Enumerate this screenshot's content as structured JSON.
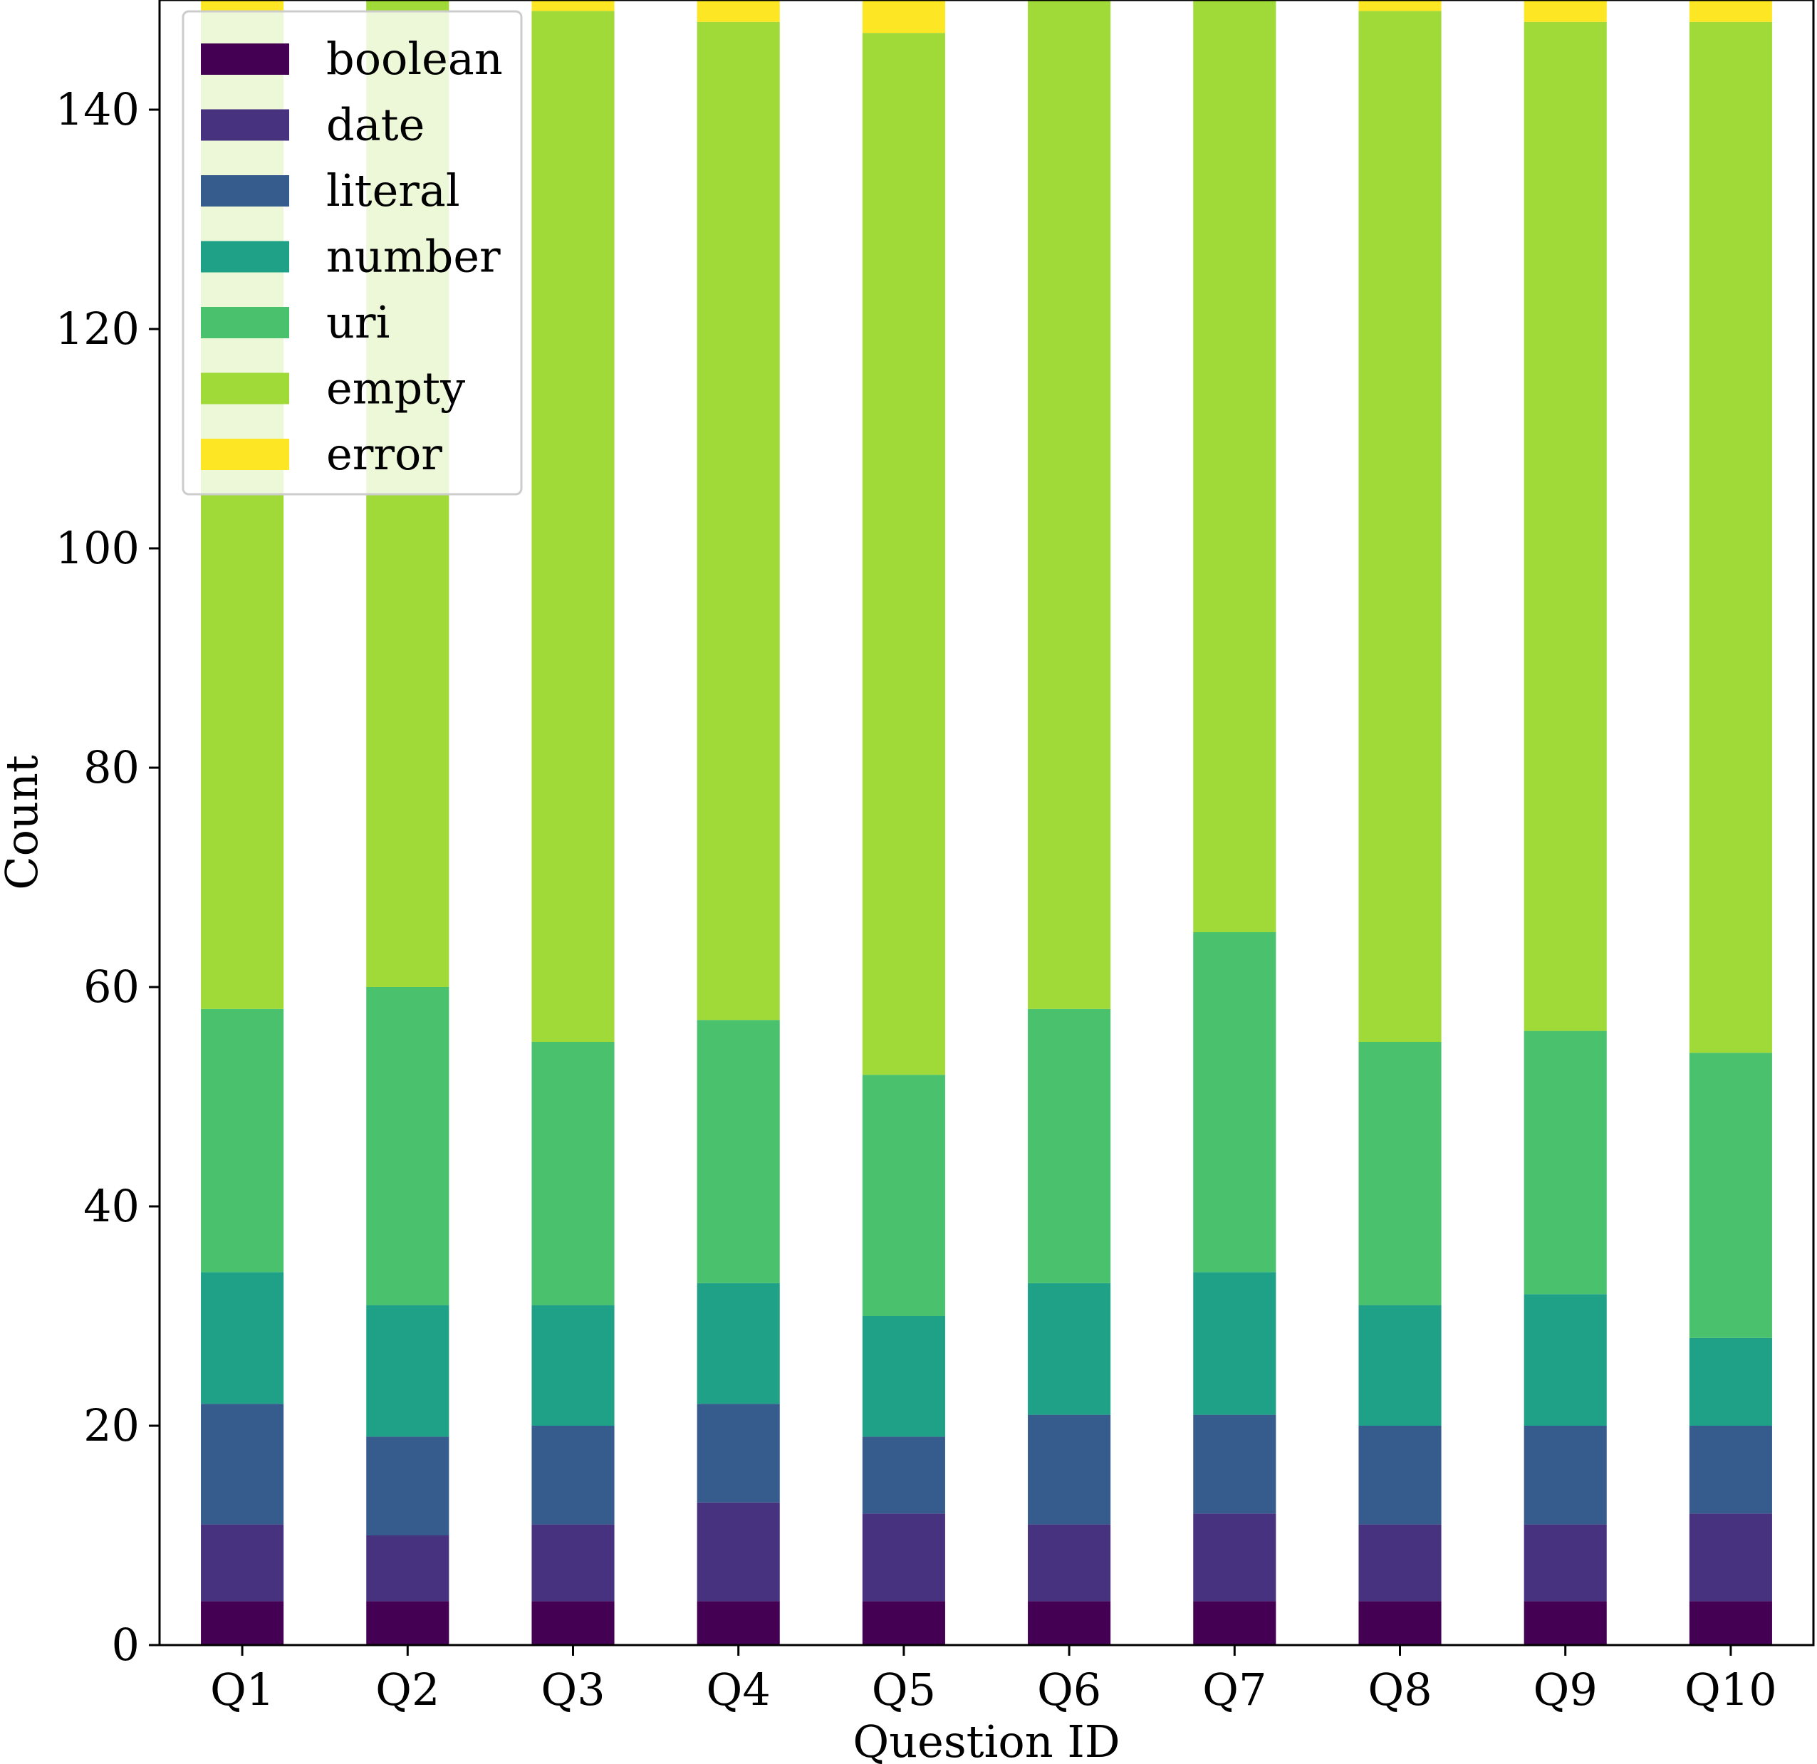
{
  "chart_data": {
    "type": "bar",
    "stacked": true,
    "categories": [
      "Q1",
      "Q2",
      "Q3",
      "Q4",
      "Q5",
      "Q6",
      "Q7",
      "Q8",
      "Q9",
      "Q10"
    ],
    "series": [
      {
        "name": "boolean",
        "color": "#440154",
        "values": [
          4,
          4,
          4,
          4,
          4,
          4,
          4,
          4,
          4,
          4
        ]
      },
      {
        "name": "date",
        "color": "#46327e",
        "values": [
          7,
          6,
          7,
          9,
          8,
          7,
          8,
          7,
          7,
          8
        ]
      },
      {
        "name": "literal",
        "color": "#365c8d",
        "values": [
          11,
          9,
          9,
          9,
          7,
          10,
          9,
          9,
          9,
          8
        ]
      },
      {
        "name": "number",
        "color": "#1fa187",
        "values": [
          12,
          12,
          11,
          11,
          11,
          12,
          13,
          11,
          12,
          8
        ]
      },
      {
        "name": "uri",
        "color": "#4ac16d",
        "values": [
          24,
          29,
          24,
          24,
          22,
          25,
          31,
          24,
          24,
          26
        ]
      },
      {
        "name": "empty",
        "color": "#a0da39",
        "values": [
          91,
          91,
          94,
          91,
          95,
          93,
          89,
          94,
          92,
          94
        ]
      },
      {
        "name": "error",
        "color": "#fde725",
        "values": [
          1,
          2,
          1,
          2,
          3,
          1,
          1,
          1,
          2,
          2
        ]
      }
    ],
    "title": "",
    "xlabel": "Question ID",
    "ylabel": "Count",
    "ylim": [
      0,
      150
    ],
    "yticks": [
      0,
      20,
      40,
      60,
      80,
      100,
      120,
      140
    ],
    "grid": false,
    "legend_position": "top-left"
  }
}
